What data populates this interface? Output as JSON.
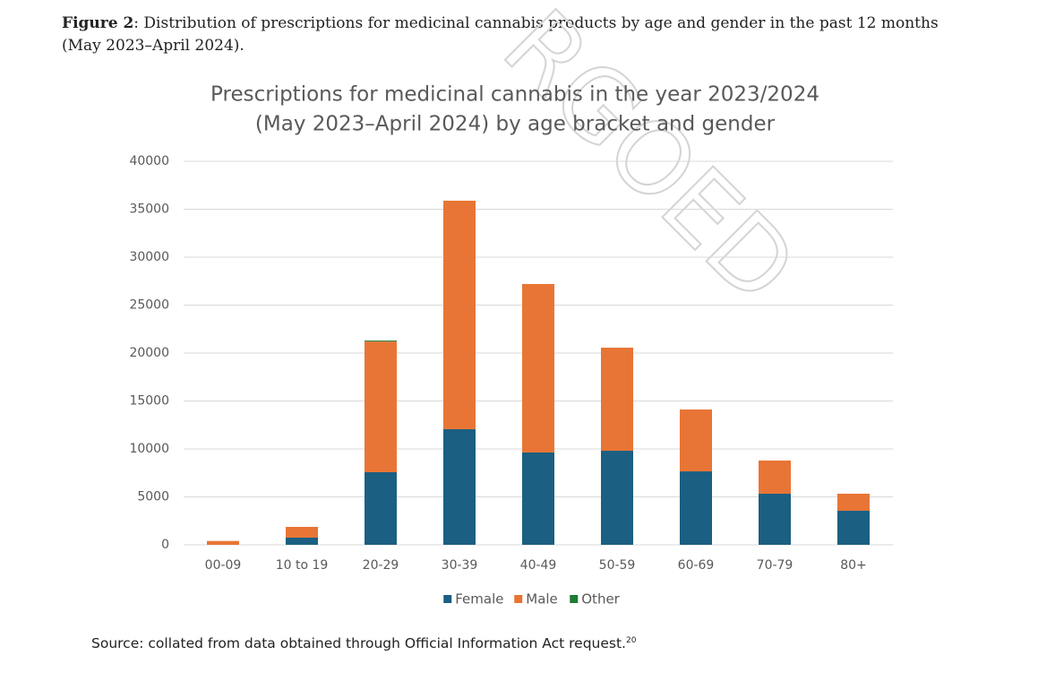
{
  "caption": {
    "label": "Figure 2",
    "text": ": Distribution of prescriptions for medicinal cannabis products by age and gender in the past 12 months (May 2023–April 2024)."
  },
  "watermark": "RGOED",
  "chart_data": {
    "type": "stacked_bar",
    "title": [
      "Prescriptions for medicinal cannabis in the year 2023/2024",
      "(May 2023–April 2024) by age bracket and gender"
    ],
    "categories": [
      "00-09",
      "10 to 19",
      "20-29",
      "30-39",
      "40-49",
      "50-59",
      "60-69",
      "70-79",
      "80+"
    ],
    "series": [
      {
        "name": "Female",
        "color": "#1b5f82",
        "values": [
          0,
          750,
          7570,
          12060,
          9630,
          9810,
          7660,
          5330,
          3550
        ]
      },
      {
        "name": "Male",
        "color": "#e87535",
        "values": [
          400,
          1120,
          13630,
          23830,
          17570,
          10750,
          6450,
          3460,
          1780
        ]
      },
      {
        "name": "Other",
        "color": "#1e7b34",
        "values": [
          0,
          0,
          100,
          0,
          0,
          0,
          0,
          0,
          0
        ]
      }
    ],
    "ylim": [
      0,
      40000
    ],
    "yticks": [
      0,
      5000,
      10000,
      15000,
      20000,
      25000,
      30000,
      35000,
      40000
    ],
    "grid": true,
    "legend": "bottom"
  },
  "source": {
    "text": "Source: collated from data obtained through Official Information Act request.",
    "note": "20"
  }
}
